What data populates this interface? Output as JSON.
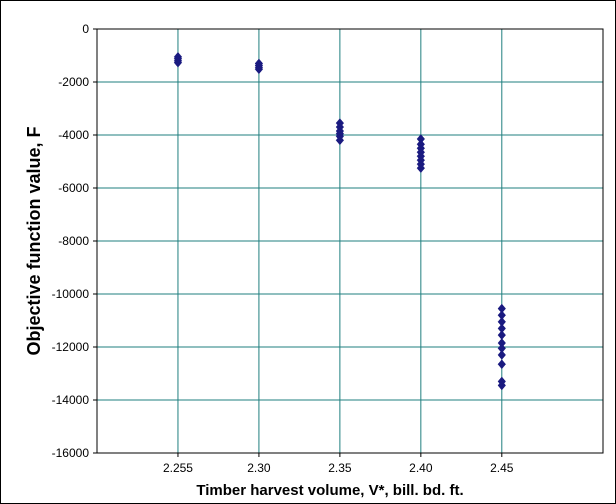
{
  "chart_data": {
    "type": "scatter",
    "title": "",
    "xlabel": "Timber harvest volume, V*, bill. bd. ft.",
    "ylabel": "Objective function value, F",
    "x_ticks": [
      "2.255",
      "2.30",
      "2.35",
      "2.40",
      "2.45"
    ],
    "y_ticks": [
      "0",
      "-2000",
      "-4000",
      "-6000",
      "-8000",
      "-10000",
      "-12000",
      "-14000",
      "-16000"
    ],
    "ylim": [
      -16000,
      0
    ],
    "grid": true,
    "marker": "diamond",
    "marker_color": "#1a1a80",
    "grid_color": "#1f7f7f",
    "series": [
      {
        "points": [
          {
            "x": "2.255",
            "y": -1050
          },
          {
            "x": "2.255",
            "y": -1120
          },
          {
            "x": "2.255",
            "y": -1200
          },
          {
            "x": "2.255",
            "y": -1270
          },
          {
            "x": "2.30",
            "y": -1300
          },
          {
            "x": "2.30",
            "y": -1380
          },
          {
            "x": "2.30",
            "y": -1460
          },
          {
            "x": "2.30",
            "y": -1520
          },
          {
            "x": "2.35",
            "y": -3550
          },
          {
            "x": "2.35",
            "y": -3700
          },
          {
            "x": "2.35",
            "y": -3850
          },
          {
            "x": "2.35",
            "y": -3950
          },
          {
            "x": "2.35",
            "y": -4050
          },
          {
            "x": "2.35",
            "y": -4200
          },
          {
            "x": "2.40",
            "y": -4150
          },
          {
            "x": "2.40",
            "y": -4350
          },
          {
            "x": "2.40",
            "y": -4500
          },
          {
            "x": "2.40",
            "y": -4650
          },
          {
            "x": "2.40",
            "y": -4800
          },
          {
            "x": "2.40",
            "y": -4950
          },
          {
            "x": "2.40",
            "y": -5100
          },
          {
            "x": "2.40",
            "y": -5250
          },
          {
            "x": "2.45",
            "y": -10550
          },
          {
            "x": "2.45",
            "y": -10800
          },
          {
            "x": "2.45",
            "y": -11050
          },
          {
            "x": "2.45",
            "y": -11300
          },
          {
            "x": "2.45",
            "y": -11550
          },
          {
            "x": "2.45",
            "y": -11850
          },
          {
            "x": "2.45",
            "y": -12050
          },
          {
            "x": "2.45",
            "y": -12300
          },
          {
            "x": "2.45",
            "y": -12650
          },
          {
            "x": "2.45",
            "y": -13300
          },
          {
            "x": "2.45",
            "y": -13450
          }
        ]
      }
    ]
  }
}
